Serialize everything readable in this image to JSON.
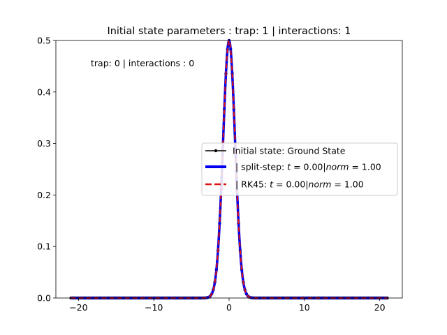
{
  "chart_data": {
    "type": "line",
    "title": "Initial state parameters : trap: 1 | interactions: 1",
    "annotation": "trap: 0 | interactions : 0",
    "xlabel": "",
    "ylabel": "",
    "xlim": [
      -23,
      23
    ],
    "ylim": [
      0,
      0.5
    ],
    "xticks": [
      -20,
      -10,
      0,
      10,
      20
    ],
    "xtick_labels": [
      "−20",
      "−10",
      "0",
      "10",
      "20"
    ],
    "yticks": [
      0.0,
      0.1,
      0.2,
      0.3,
      0.4,
      0.5
    ],
    "ytick_labels": [
      "0.0",
      "0.1",
      "0.2",
      "0.3",
      "0.4",
      "0.5"
    ],
    "grid": false,
    "legend_position": "center-right",
    "x_range": [
      -21,
      21
    ],
    "curve_form": "gaussian",
    "curve_peak": {
      "x": 0,
      "y": 0.5
    },
    "curve_sigma": 0.8,
    "series": [
      {
        "name": "Initial state: Ground State",
        "style": "solid line with dot markers",
        "color": "#000000"
      },
      {
        "name": "| split-step: t = 0.00|norm = 1.00",
        "style": "thick solid",
        "color": "#0000ee"
      },
      {
        "name": "| RK45: t = 0.00|norm = 1.00",
        "style": "dashed",
        "color": "#dd1111"
      }
    ]
  },
  "legend": {
    "entry0": "Initial state: Ground State",
    "entry1_prefix": "| split-step: ",
    "entry1_t": "t",
    "entry1_mid": " = 0.00|",
    "entry1_norm": "norm",
    "entry1_end": " = 1.00",
    "entry2_prefix": "| RK45: ",
    "entry2_t": "t",
    "entry2_mid": " = 0.00|",
    "entry2_norm": "norm",
    "entry2_end": " = 1.00"
  }
}
